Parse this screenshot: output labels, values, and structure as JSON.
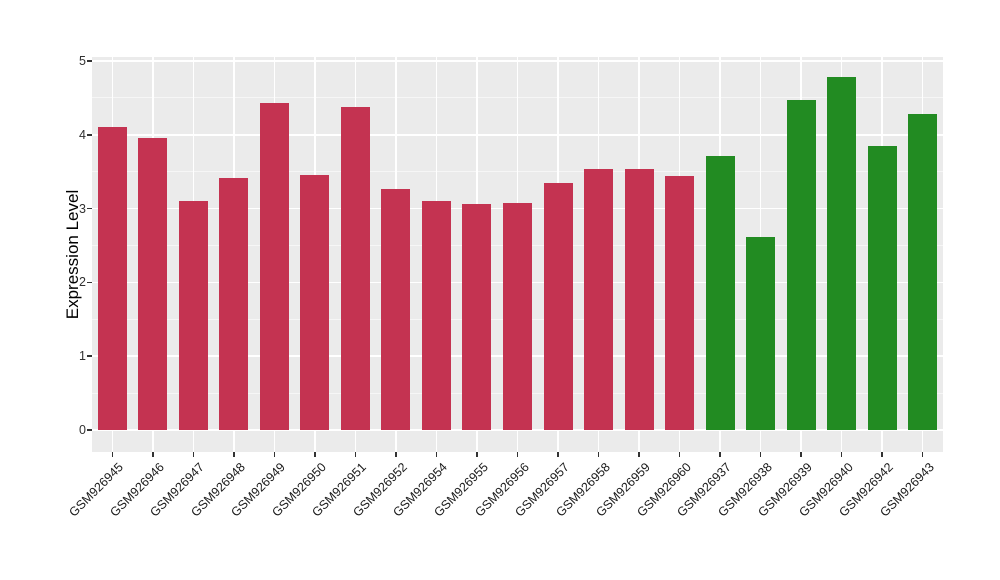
{
  "figure": {
    "background_color": "#FFFFFF",
    "panel_background_color": "#EBEBEB",
    "gridline_color": "#FFFFFF",
    "tick_color": "#333333",
    "axis_text_color": "#1A1A1A"
  },
  "chart_data": {
    "type": "bar",
    "title": "",
    "xlabel": "",
    "ylabel": "Expression Level",
    "ylim": [
      0,
      5
    ],
    "yticks": [
      "0",
      "1",
      "2",
      "3",
      "4",
      "5"
    ],
    "grid": "white major gridlines at integers, faint minor gridlines at halves, vertical gridlines at category centers, on gray panel",
    "legend_position": "none",
    "x_tick_rotation_deg": 45,
    "categories": [
      "GSM926945",
      "GSM926946",
      "GSM926947",
      "GSM926948",
      "GSM926949",
      "GSM926950",
      "GSM926951",
      "GSM926952",
      "GSM926954",
      "GSM926955",
      "GSM926956",
      "GSM926957",
      "GSM926958",
      "GSM926959",
      "GSM926960",
      "GSM926937",
      "GSM926938",
      "GSM926939",
      "GSM926940",
      "GSM926942",
      "GSM926943"
    ],
    "values": [
      4.1,
      3.95,
      3.1,
      3.41,
      4.43,
      3.45,
      4.38,
      3.26,
      3.1,
      3.06,
      3.07,
      3.35,
      3.53,
      3.53,
      3.44,
      3.71,
      2.61,
      4.47,
      4.78,
      3.85,
      4.28
    ],
    "bar_groups": [
      "red",
      "red",
      "red",
      "red",
      "red",
      "red",
      "red",
      "red",
      "red",
      "red",
      "red",
      "red",
      "red",
      "red",
      "red",
      "green",
      "green",
      "green",
      "green",
      "green",
      "green"
    ],
    "group_colors": {
      "red": "#C43351",
      "green": "#228B22"
    }
  }
}
